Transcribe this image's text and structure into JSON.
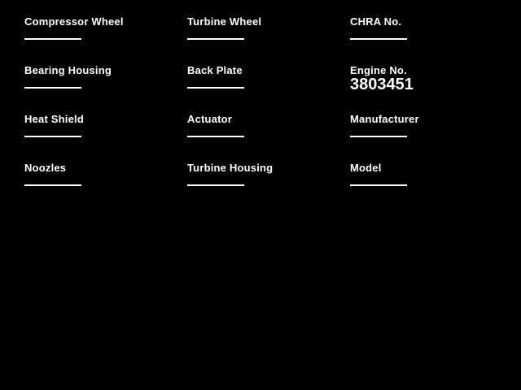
{
  "form": {
    "colors": {
      "background": "#000000",
      "text": "#ffffff",
      "input_line": "#ffffff"
    },
    "columns": [
      {
        "fields": [
          {
            "label": "Compressor Wheel",
            "value": ""
          },
          {
            "label": "Bearing Housing",
            "value": ""
          },
          {
            "label": "Heat Shield",
            "value": ""
          },
          {
            "label": "Noozles",
            "value": ""
          }
        ]
      },
      {
        "fields": [
          {
            "label": "Turbine Wheel",
            "value": ""
          },
          {
            "label": "Back Plate",
            "value": ""
          },
          {
            "label": "Actuator",
            "value": ""
          },
          {
            "label": "Turbine Housing",
            "value": ""
          }
        ]
      },
      {
        "fields": [
          {
            "label": "CHRA No.",
            "value": ""
          },
          {
            "label": "Engine No.",
            "value": "3803451"
          },
          {
            "label": "Manufacturer",
            "value": ""
          },
          {
            "label": "Model",
            "value": ""
          }
        ]
      }
    ]
  }
}
